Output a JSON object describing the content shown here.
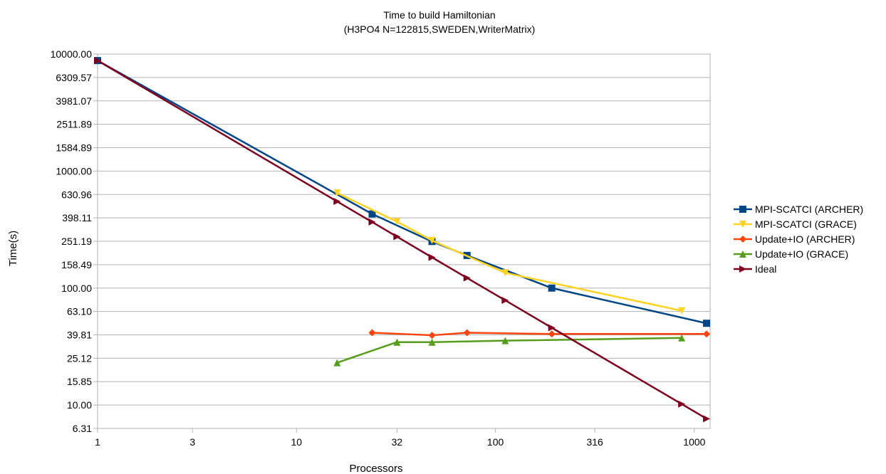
{
  "chart_data": {
    "type": "line",
    "title": "Time to build Hamiltonian",
    "subtitle": "(H3PO4 N=122815,SWEDEN,WriterMatrix)",
    "xlabel": "Processors",
    "ylabel": "Time(s)",
    "x_scale": "log",
    "y_scale": "log",
    "xlim": [
      1,
      1200
    ],
    "ylim": [
      6.31,
      10000
    ],
    "x_ticks": [
      {
        "value": 1,
        "label": "1"
      },
      {
        "value": 3,
        "label": "3"
      },
      {
        "value": 10,
        "label": "10"
      },
      {
        "value": 32,
        "label": "32"
      },
      {
        "value": 100,
        "label": "100"
      },
      {
        "value": 316,
        "label": "316"
      },
      {
        "value": 1000,
        "label": "1000"
      }
    ],
    "y_ticks": [
      {
        "value": 6.31,
        "label": "6.31"
      },
      {
        "value": 10,
        "label": "10.00"
      },
      {
        "value": 15.85,
        "label": "15.85"
      },
      {
        "value": 25.12,
        "label": "25.12"
      },
      {
        "value": 39.81,
        "label": "39.81"
      },
      {
        "value": 63.1,
        "label": "63.10"
      },
      {
        "value": 100,
        "label": "100.00"
      },
      {
        "value": 158.49,
        "label": "158.49"
      },
      {
        "value": 251.19,
        "label": "251.19"
      },
      {
        "value": 398.11,
        "label": "398.11"
      },
      {
        "value": 630.96,
        "label": "630.96"
      },
      {
        "value": 1000,
        "label": "1000.00"
      },
      {
        "value": 1584.89,
        "label": "1584.89"
      },
      {
        "value": 2511.89,
        "label": "2511.89"
      },
      {
        "value": 3981.07,
        "label": "3981.07"
      },
      {
        "value": 6309.57,
        "label": "6309.57"
      },
      {
        "value": 10000,
        "label": "10000.00"
      }
    ],
    "grid": "horizontal",
    "legend_position": "right",
    "series": [
      {
        "name": "MPI-SCATCI (ARCHER)",
        "color": "#004586",
        "marker": "square",
        "points": [
          [
            1,
            8800
          ],
          [
            24,
            430
          ],
          [
            48,
            250
          ],
          [
            72,
            190
          ],
          [
            192,
            100
          ],
          [
            1152,
            50
          ]
        ]
      },
      {
        "name": "MPI-SCATCI (GRACE)",
        "color": "#ffd320",
        "marker": "triangle-down",
        "points": [
          [
            16,
            650
          ],
          [
            32,
            370
          ],
          [
            48,
            255
          ],
          [
            112,
            135
          ],
          [
            864,
            64
          ]
        ]
      },
      {
        "name": "Update+IO (ARCHER)",
        "color": "#ff420e",
        "marker": "diamond",
        "points": [
          [
            24,
            41.5
          ],
          [
            48,
            39.5
          ],
          [
            72,
            41.5
          ],
          [
            192,
            40.5
          ],
          [
            1152,
            40.5
          ]
        ]
      },
      {
        "name": "Update+IO (GRACE)",
        "color": "#579d1c",
        "marker": "triangle-up",
        "points": [
          [
            16,
            23
          ],
          [
            32,
            34.5
          ],
          [
            48,
            34.5
          ],
          [
            112,
            35.5
          ],
          [
            864,
            37.5
          ]
        ]
      },
      {
        "name": "Ideal",
        "color": "#7e0021",
        "marker": "triangle-right",
        "points": [
          [
            1,
            8800
          ],
          [
            16,
            550
          ],
          [
            24,
            367
          ],
          [
            32,
            275
          ],
          [
            48,
            183
          ],
          [
            72,
            122
          ],
          [
            112,
            78.6
          ],
          [
            192,
            45.8
          ],
          [
            864,
            10.2
          ],
          [
            1152,
            7.64
          ]
        ]
      }
    ]
  }
}
